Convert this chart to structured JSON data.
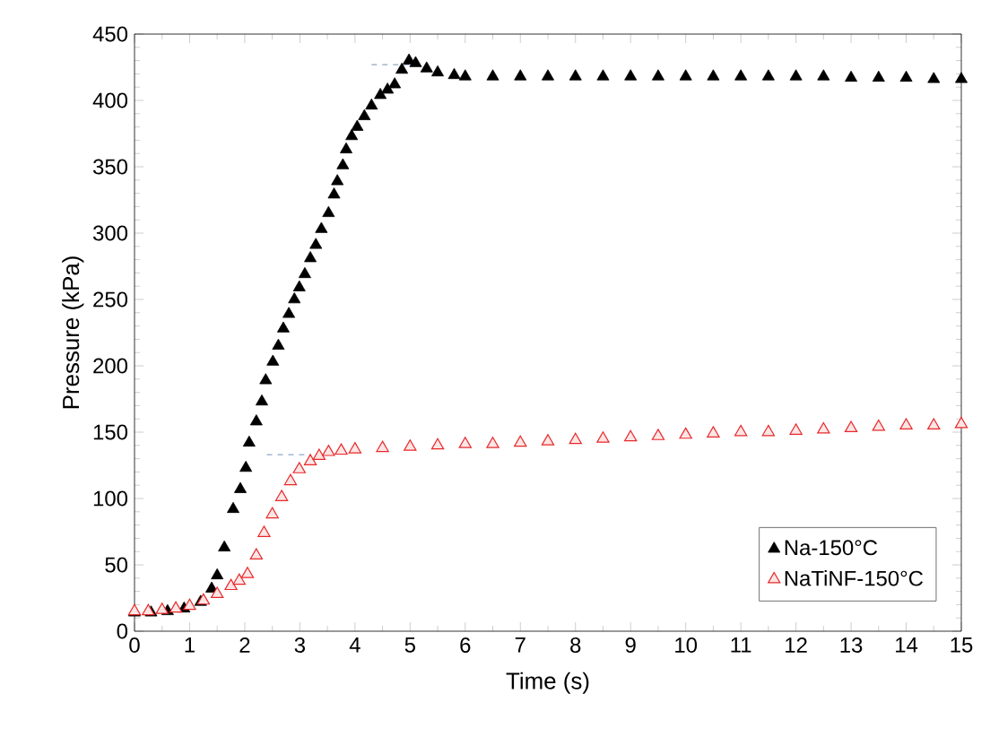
{
  "chart_data": {
    "type": "scatter",
    "xlabel": "Time (s)",
    "ylabel": "Pressure (kPa)",
    "xlim": [
      0,
      15
    ],
    "ylim": [
      0,
      450
    ],
    "xticks": [
      0,
      1,
      2,
      3,
      4,
      5,
      6,
      7,
      8,
      9,
      10,
      11,
      12,
      13,
      14,
      15
    ],
    "yticks": [
      0,
      50,
      100,
      150,
      200,
      250,
      300,
      350,
      400,
      450
    ],
    "legend": "bottom right",
    "grid": false,
    "series": [
      {
        "name": "Na-150°C",
        "color": "#000000",
        "marker": "triangle",
        "x": [
          0,
          0.3,
          0.6,
          0.9,
          1.2,
          1.4,
          1.5,
          1.63,
          1.79,
          1.92,
          2.02,
          2.08,
          2.21,
          2.31,
          2.38,
          2.51,
          2.61,
          2.7,
          2.8,
          2.9,
          2.99,
          3.09,
          3.19,
          3.29,
          3.39,
          3.52,
          3.62,
          3.68,
          3.78,
          3.84,
          3.94,
          4.04,
          4.17,
          4.3,
          4.46,
          4.59,
          4.72,
          4.85,
          4.98,
          5.1,
          5.3,
          5.5,
          5.8,
          6,
          6.5,
          7,
          7.5,
          8,
          8.5,
          9,
          9.5,
          10,
          10.5,
          11,
          11.5,
          12,
          12.5,
          13,
          13.5,
          14,
          14.5,
          15
        ],
        "values": [
          14,
          14,
          15,
          17,
          22,
          32,
          42,
          63,
          92,
          107,
          123,
          142,
          158,
          173,
          189,
          203,
          215,
          228,
          239,
          250,
          259,
          269,
          281,
          291,
          303,
          315,
          329,
          339,
          351,
          363,
          373,
          380,
          388,
          396,
          404,
          408,
          412,
          423,
          430,
          428,
          424,
          421,
          419,
          418,
          418,
          418,
          418,
          418,
          418,
          418,
          418,
          418,
          418,
          418,
          418,
          418,
          418,
          417,
          417,
          417,
          416,
          416
        ]
      },
      {
        "name": "NaTiNF-150°C",
        "color": "#e8282a",
        "marker": "triangle",
        "x": [
          0,
          0.25,
          0.5,
          0.75,
          1,
          1.25,
          1.5,
          1.75,
          1.9,
          2.05,
          2.21,
          2.35,
          2.5,
          2.67,
          2.83,
          2.99,
          3.19,
          3.35,
          3.52,
          3.75,
          4,
          4.5,
          5,
          5.5,
          6,
          6.5,
          7,
          7.5,
          8,
          8.5,
          9,
          9.5,
          10,
          10.5,
          11,
          11.5,
          12,
          12.5,
          13,
          13.5,
          14,
          14.5,
          15
        ],
        "values": [
          15,
          15,
          16,
          17,
          19,
          23,
          28,
          34,
          38,
          43,
          57,
          74,
          88,
          101,
          113,
          122,
          128,
          132,
          135,
          136,
          137,
          138,
          139,
          140,
          141,
          141,
          142,
          143,
          144,
          145,
          146,
          147,
          148,
          149,
          150,
          150,
          151,
          152,
          153,
          154,
          155,
          155,
          156
        ]
      },
      {
        "type": "line",
        "line_style": "dashed",
        "marker": "none",
        "color": "#8fa8c8",
        "x": [
          4.3,
          5.0
        ],
        "values": [
          427,
          427
        ]
      },
      {
        "type": "line",
        "line_style": "dashed",
        "marker": "none",
        "color": "#8fa8c8",
        "x": [
          2.4,
          3.2
        ],
        "values": [
          133,
          133
        ]
      }
    ]
  }
}
